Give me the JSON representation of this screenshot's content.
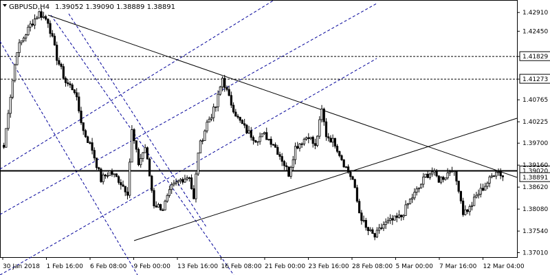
{
  "header": {
    "symbol": "GBPUSD,H4",
    "ohlc": "1.39052 1.39090 1.38889 1.38891"
  },
  "chart_data": {
    "type": "candlestick",
    "symbol": "GBPUSD",
    "timeframe": "H4",
    "title": "GBPUSD,H4  1.39052 1.39090 1.38889 1.38891",
    "ylim": [
      1.369,
      1.432
    ],
    "y_ticks": [
      "1.42910",
      "1.42450",
      "1.41829",
      "1.41273",
      "1.40765",
      "1.40225",
      "1.39700",
      "1.39160",
      "1.38620",
      "1.38080",
      "1.37540",
      "1.37010"
    ],
    "y_tick_values": [
      1.4291,
      1.4245,
      1.41829,
      1.41273,
      1.40765,
      1.40225,
      1.397,
      1.3916,
      1.3862,
      1.3808,
      1.3754,
      1.3701
    ],
    "x_ticks": [
      "30 Jan 2018",
      "1 Feb 16:00",
      "6 Feb 08:00",
      "9 Feb 00:00",
      "13 Feb 16:00",
      "16 Feb 08:00",
      "21 Feb 00:00",
      "23 Feb 16:00",
      "28 Feb 08:00",
      "5 Mar 00:00",
      "7 Mar 16:00",
      "12 Mar 04:00"
    ],
    "horizontal_levels": [
      {
        "value": 1.41829,
        "label": "1.41829",
        "style": "dashed",
        "color": "#000000"
      },
      {
        "value": 1.41273,
        "label": "1.41273",
        "style": "dashed",
        "color": "#000000"
      },
      {
        "value": 1.3902,
        "label": "1.39020",
        "style": "solid",
        "color": "#000000"
      }
    ],
    "last_price": {
      "value": 1.38891,
      "label": "1.38891"
    },
    "candle_color": "#000000",
    "line_color": "#000000",
    "channel_color": "#000099",
    "anchors": [
      {
        "x": 0,
        "y": 1.396
      },
      {
        "x": 2,
        "y": 1.405
      },
      {
        "x": 6,
        "y": 1.42
      },
      {
        "x": 12,
        "y": 1.426
      },
      {
        "x": 16,
        "y": 1.429
      },
      {
        "x": 20,
        "y": 1.427
      },
      {
        "x": 24,
        "y": 1.418
      },
      {
        "x": 28,
        "y": 1.412
      },
      {
        "x": 32,
        "y": 1.41
      },
      {
        "x": 36,
        "y": 1.4
      },
      {
        "x": 40,
        "y": 1.3955
      },
      {
        "x": 44,
        "y": 1.388
      },
      {
        "x": 48,
        "y": 1.39
      },
      {
        "x": 52,
        "y": 1.388
      },
      {
        "x": 56,
        "y": 1.385
      },
      {
        "x": 58,
        "y": 1.4
      },
      {
        "x": 61,
        "y": 1.392
      },
      {
        "x": 64,
        "y": 1.396
      },
      {
        "x": 68,
        "y": 1.382
      },
      {
        "x": 72,
        "y": 1.381
      },
      {
        "x": 76,
        "y": 1.386
      },
      {
        "x": 80,
        "y": 1.388
      },
      {
        "x": 84,
        "y": 1.389
      },
      {
        "x": 86,
        "y": 1.383
      },
      {
        "x": 88,
        "y": 1.395
      },
      {
        "x": 92,
        "y": 1.402
      },
      {
        "x": 96,
        "y": 1.406
      },
      {
        "x": 99,
        "y": 1.413
      },
      {
        "x": 102,
        "y": 1.408
      },
      {
        "x": 106,
        "y": 1.403
      },
      {
        "x": 110,
        "y": 1.4
      },
      {
        "x": 114,
        "y": 1.398
      },
      {
        "x": 118,
        "y": 1.399
      },
      {
        "x": 122,
        "y": 1.397
      },
      {
        "x": 126,
        "y": 1.393
      },
      {
        "x": 129,
        "y": 1.3895
      },
      {
        "x": 132,
        "y": 1.396
      },
      {
        "x": 135,
        "y": 1.3975
      },
      {
        "x": 138,
        "y": 1.399
      },
      {
        "x": 141,
        "y": 1.396
      },
      {
        "x": 144,
        "y": 1.405
      },
      {
        "x": 146,
        "y": 1.399
      },
      {
        "x": 150,
        "y": 1.397
      },
      {
        "x": 154,
        "y": 1.392
      },
      {
        "x": 158,
        "y": 1.388
      },
      {
        "x": 161,
        "y": 1.38
      },
      {
        "x": 164,
        "y": 1.376
      },
      {
        "x": 168,
        "y": 1.374
      },
      {
        "x": 172,
        "y": 1.377
      },
      {
        "x": 176,
        "y": 1.378
      },
      {
        "x": 180,
        "y": 1.379
      },
      {
        "x": 184,
        "y": 1.383
      },
      {
        "x": 188,
        "y": 1.386
      },
      {
        "x": 191,
        "y": 1.389
      },
      {
        "x": 194,
        "y": 1.39
      },
      {
        "x": 197,
        "y": 1.388
      },
      {
        "x": 200,
        "y": 1.389
      },
      {
        "x": 203,
        "y": 1.391
      },
      {
        "x": 206,
        "y": 1.386
      },
      {
        "x": 208,
        "y": 1.38
      },
      {
        "x": 211,
        "y": 1.381
      },
      {
        "x": 214,
        "y": 1.384
      },
      {
        "x": 217,
        "y": 1.386
      },
      {
        "x": 220,
        "y": 1.388
      },
      {
        "x": 223,
        "y": 1.3905
      },
      {
        "x": 226,
        "y": 1.3889
      }
    ]
  }
}
